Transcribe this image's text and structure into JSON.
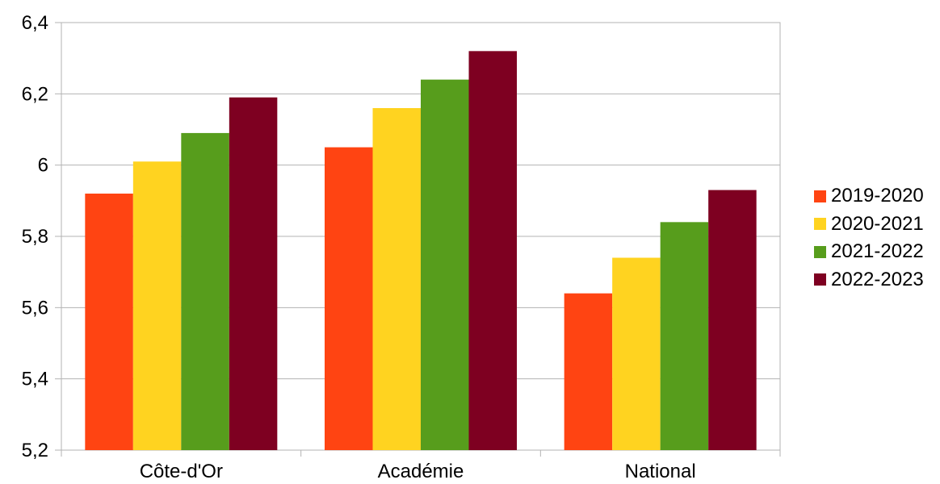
{
  "chart_data": {
    "type": "bar",
    "categories": [
      "Côte-d'Or",
      "Académie",
      "National"
    ],
    "series": [
      {
        "name": "2019-2020",
        "color": "#FF4412",
        "values": [
          5.92,
          6.05,
          5.64
        ]
      },
      {
        "name": "2020-2021",
        "color": "#FFD320",
        "values": [
          6.01,
          6.16,
          5.74
        ]
      },
      {
        "name": "2021-2022",
        "color": "#579D1C",
        "values": [
          6.09,
          6.24,
          5.84
        ]
      },
      {
        "name": "2022-2023",
        "color": "#7E0021",
        "values": [
          6.19,
          6.32,
          5.93
        ]
      }
    ],
    "ylim": [
      5.2,
      6.4
    ],
    "yticks": [
      "5,2",
      "5,4",
      "5,6",
      "5,8",
      "6",
      "6,2",
      "6,4"
    ],
    "grid": true,
    "legend_position": "right"
  }
}
